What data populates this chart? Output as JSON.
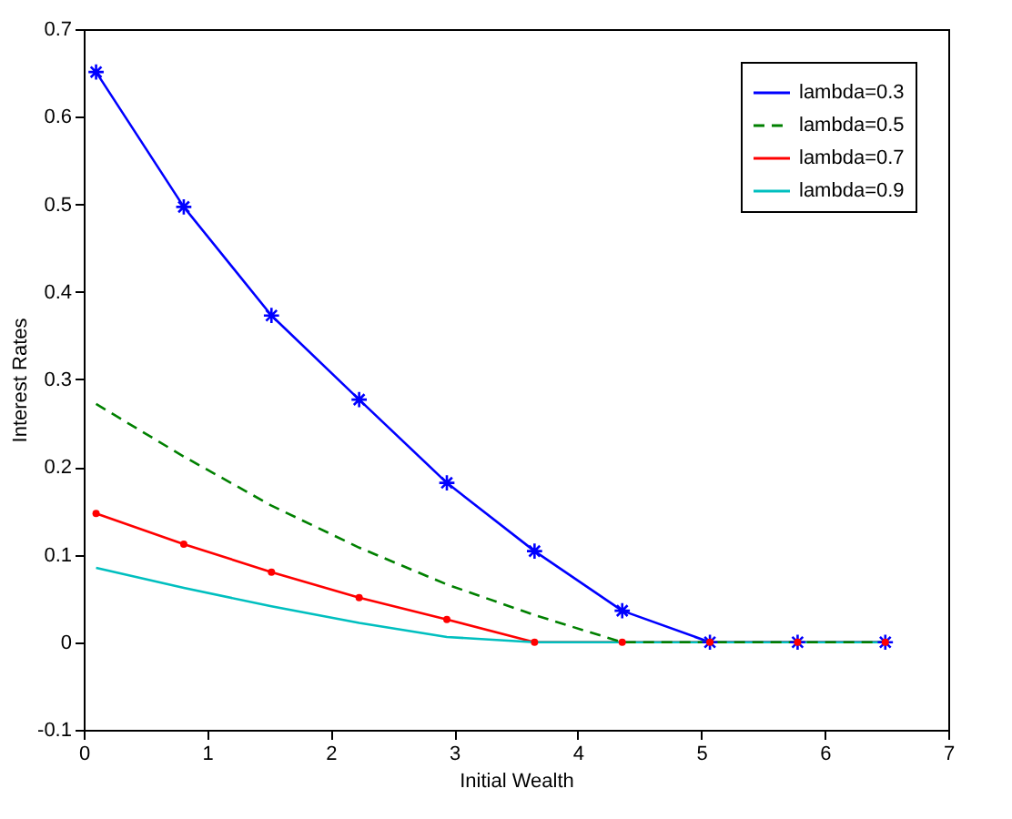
{
  "chart_data": {
    "type": "line",
    "xlabel": "Initial Wealth",
    "ylabel": "Interest Rates",
    "x": [
      0.1,
      0.81,
      1.52,
      2.23,
      2.94,
      3.65,
      4.36,
      5.07,
      5.78,
      6.49
    ],
    "xlim": [
      0,
      7
    ],
    "xticks": [
      0,
      1,
      2,
      3,
      4,
      5,
      6,
      7
    ],
    "ylim": [
      -0.1,
      0.7
    ],
    "yticks": [
      -0.1,
      0,
      0.1,
      0.2,
      0.3,
      0.4,
      0.5,
      0.6,
      0.7
    ],
    "grid": false,
    "legend": "top right",
    "series": [
      {
        "name": "lambda=0.3",
        "color": "#0000ff",
        "marker": "cross",
        "line_style": "solid",
        "values": [
          0.651,
          0.497,
          0.373,
          0.277,
          0.182,
          0.104,
          0.036,
          0,
          0,
          0
        ]
      },
      {
        "name": "lambda=0.5",
        "color": "#008000",
        "marker": "none",
        "line_style": "dashed",
        "values": [
          0.272,
          0.212,
          0.156,
          0.108,
          0.066,
          0.031,
          0,
          0,
          0,
          0
        ]
      },
      {
        "name": "lambda=0.7",
        "color": "#ff0000",
        "marker": "circle",
        "line_style": "solid",
        "values": [
          0.147,
          0.112,
          0.08,
          0.051,
          0.026,
          0,
          0,
          0,
          0,
          0
        ]
      },
      {
        "name": "lambda=0.9",
        "color": "#00bfbf",
        "marker": "none",
        "line_style": "solid",
        "values": [
          0.085,
          0.062,
          0.041,
          0.022,
          0.006,
          0,
          0,
          0,
          0,
          0
        ]
      }
    ]
  }
}
